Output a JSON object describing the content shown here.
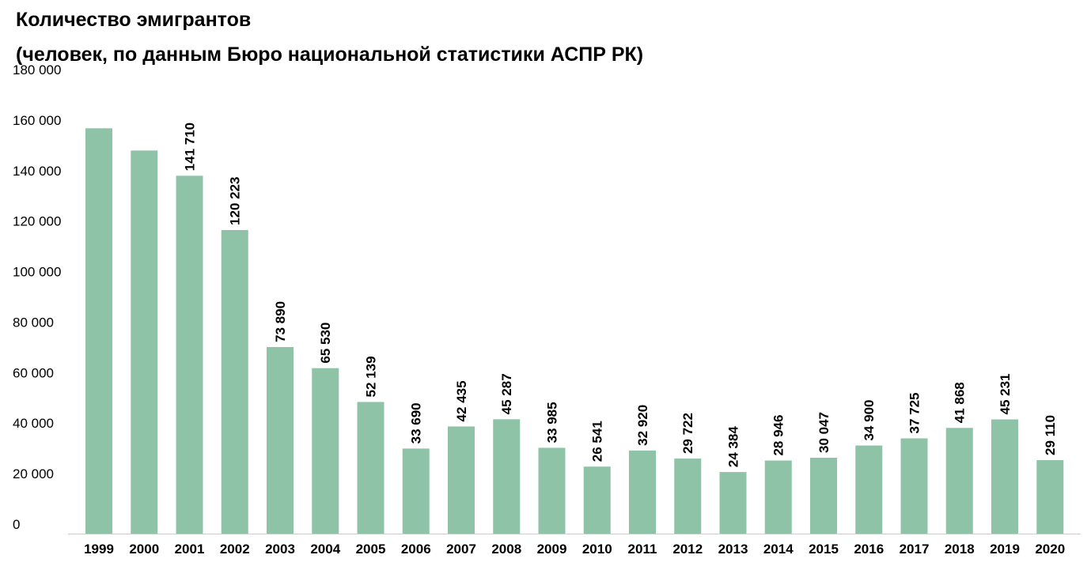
{
  "chart": {
    "title": "Количество эмигрантов",
    "subtitle": "(человек, по данным Бюро национальной статистики АСПР РК)"
  },
  "chart_data": {
    "type": "bar",
    "title": "Количество эмигрантов",
    "subtitle": "(человек, по данным Бюро национальной статистики АСПР РК)",
    "xlabel": "",
    "ylabel": "",
    "ylim": [
      0,
      180000
    ],
    "yticks": [
      0,
      20000,
      40000,
      60000,
      80000,
      100000,
      120000,
      140000,
      160000,
      180000
    ],
    "ytick_labels": [
      "0",
      "20 000",
      "40 000",
      "60 000",
      "80 000",
      "100 000",
      "120 000",
      "140 000",
      "160 000",
      "180 000"
    ],
    "grid": false,
    "bar_color": "#8fc3a8",
    "categories": [
      "1999",
      "2000",
      "2001",
      "2002",
      "2003",
      "2004",
      "2005",
      "2006",
      "2007",
      "2008",
      "2009",
      "2010",
      "2011",
      "2012",
      "2013",
      "2014",
      "2015",
      "2016",
      "2017",
      "2018",
      "2019",
      "2020"
    ],
    "values": [
      160500,
      151700,
      141710,
      120223,
      73890,
      65530,
      52139,
      33690,
      42435,
      45287,
      33985,
      26541,
      32920,
      29722,
      24384,
      28946,
      30047,
      34900,
      37725,
      41868,
      45231,
      29110
    ],
    "data_labels": [
      null,
      null,
      "141 710",
      "120 223",
      "73 890",
      "65 530",
      "52 139",
      "33 690",
      "42 435",
      "45 287",
      "33 985",
      "26 541",
      "32 920",
      "29 722",
      "24 384",
      "28 946",
      "30 047",
      "34 900",
      "37 725",
      "41 868",
      "45 231",
      "29 110"
    ]
  }
}
